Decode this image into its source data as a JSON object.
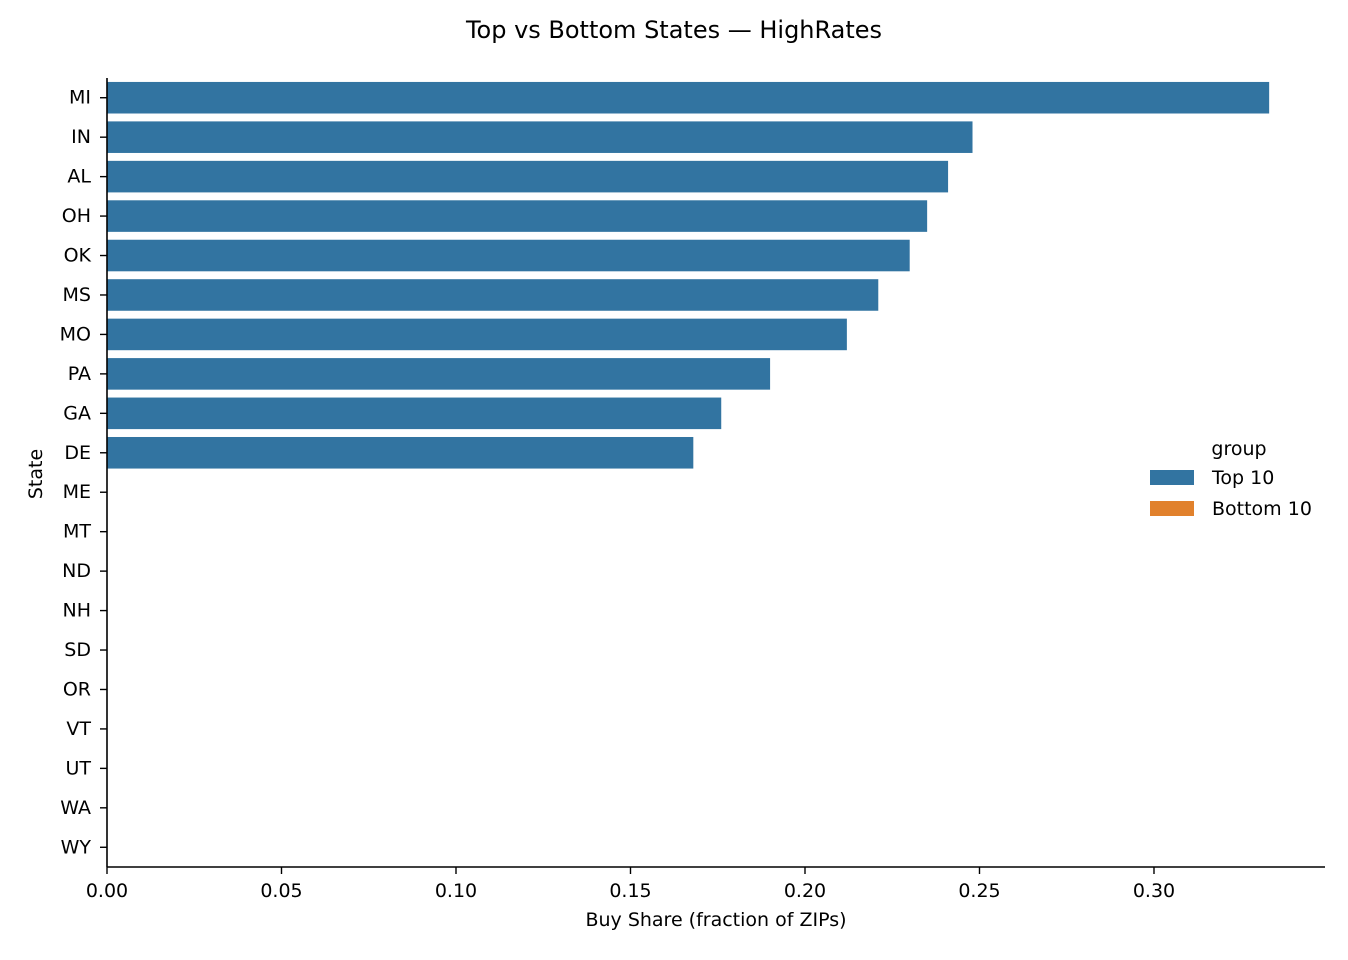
{
  "chart_data": {
    "type": "bar",
    "orientation": "horizontal",
    "title": "Top vs Bottom States — HighRates",
    "xlabel": "Buy Share (fraction of ZIPs)",
    "ylabel": "State",
    "xlim": [
      0.0,
      0.349
    ],
    "x_ticks": [
      "0.00",
      "0.05",
      "0.10",
      "0.15",
      "0.20",
      "0.25",
      "0.30"
    ],
    "x_tick_values": [
      0.0,
      0.05,
      0.1,
      0.15,
      0.2,
      0.25,
      0.3
    ],
    "categories": [
      "MI",
      "IN",
      "AL",
      "OH",
      "OK",
      "MS",
      "MO",
      "PA",
      "GA",
      "DE",
      "ME",
      "MT",
      "ND",
      "NH",
      "SD",
      "OR",
      "VT",
      "UT",
      "WA",
      "WY"
    ],
    "series": [
      {
        "name": "Top 10",
        "color": "#3274a1",
        "values": [
          0.333,
          0.248,
          0.241,
          0.235,
          0.23,
          0.221,
          0.212,
          0.19,
          0.176,
          0.168,
          null,
          null,
          null,
          null,
          null,
          null,
          null,
          null,
          null,
          null
        ]
      },
      {
        "name": "Bottom 10",
        "color": "#e1812c",
        "values": [
          null,
          null,
          null,
          null,
          null,
          null,
          null,
          null,
          null,
          null,
          0.0,
          0.0,
          0.0,
          0.0,
          0.0,
          0.0,
          0.0,
          0.0,
          0.0,
          0.0
        ]
      }
    ],
    "legend": {
      "title": "group",
      "placement": "right"
    },
    "grid": false
  }
}
